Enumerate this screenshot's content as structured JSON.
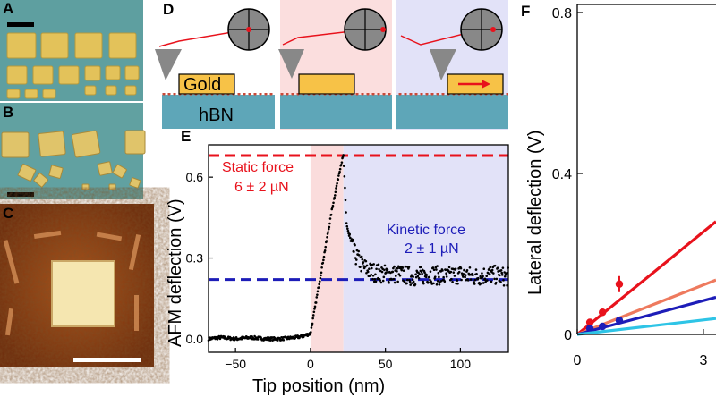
{
  "panels": {
    "a": "A",
    "b": "B",
    "c": "C",
    "d": "D",
    "e": "E",
    "f": "F"
  },
  "diagram": {
    "gold_label": "Gold",
    "substrate_label": "hBN"
  },
  "colors": {
    "static": "#e8121c",
    "kinetic": "#1d1db8",
    "pink_bg": "#fadcdc",
    "blue_bg": "#e2e2f8",
    "gold": "#f7c247",
    "hbn": "#5ea6b8",
    "optical_bg": "#5fa0a2",
    "afm_bg": "#8a3a12"
  },
  "annotations": {
    "static_force_title": "Static force",
    "static_force_value": "6 ± 2 µN",
    "kinetic_force_title": "Kinetic force",
    "kinetic_force_value": "2 ± 1 µN"
  },
  "chart_data": [
    {
      "panel": "E",
      "type": "scatter",
      "title": "",
      "xlabel": "Tip position (nm)",
      "ylabel": "AFM deflection (V)",
      "xlim": [
        -68,
        132
      ],
      "ylim": [
        -0.05,
        0.72
      ],
      "xticks": [
        -50,
        0,
        50,
        100
      ],
      "yticks": [
        "0.0",
        "0.3",
        "0.6"
      ],
      "regions": [
        {
          "name": "static",
          "x_range": [
            0,
            22
          ]
        },
        {
          "name": "kinetic",
          "x_range": [
            22,
            132
          ]
        }
      ],
      "reference_lines": [
        {
          "name": "Static force",
          "y": 0.68,
          "style": "dashed"
        },
        {
          "name": "Kinetic force",
          "y": 0.22,
          "style": "dashed"
        }
      ],
      "series": [
        {
          "x": [
            -68,
            -60,
            -50,
            -40,
            -30,
            -20,
            -10,
            -5,
            0,
            5,
            10,
            15,
            20,
            22,
            24,
            27,
            30,
            35,
            40,
            50,
            60,
            70,
            80,
            90,
            100,
            110,
            120,
            130
          ],
          "y": [
            0.0,
            0.005,
            0.0,
            0.005,
            0.0,
            0.0,
            0.005,
            0.01,
            0.02,
            0.18,
            0.34,
            0.5,
            0.64,
            0.68,
            0.43,
            0.35,
            0.31,
            0.27,
            0.25,
            0.24,
            0.24,
            0.23,
            0.24,
            0.23,
            0.24,
            0.23,
            0.24,
            0.23
          ]
        }
      ]
    },
    {
      "panel": "F",
      "type": "scatter",
      "title": "",
      "xlabel": "",
      "ylabel": "Lateral deflection (V)",
      "xlim": [
        0,
        3.3
      ],
      "ylim": [
        0,
        0.82
      ],
      "xticks": [
        "0",
        "3"
      ],
      "yticks": [
        "0",
        "0.4",
        "0.8"
      ],
      "series": [
        {
          "color": "#e8121c",
          "points": [
            [
              0.3,
              0.03
            ],
            [
              0.6,
              0.055
            ],
            [
              1.0,
              0.125
            ]
          ],
          "fit_slope": 0.085
        },
        {
          "color": "#ee7a5e",
          "points": [],
          "fit_slope": 0.041
        },
        {
          "color": "#1d1db8",
          "points": [
            [
              0.3,
              0.015
            ],
            [
              0.6,
              0.02
            ],
            [
              1.0,
              0.035
            ]
          ],
          "fit_slope": 0.028
        },
        {
          "color": "#2ec4e6",
          "points": [],
          "fit_slope": 0.012
        }
      ]
    }
  ]
}
